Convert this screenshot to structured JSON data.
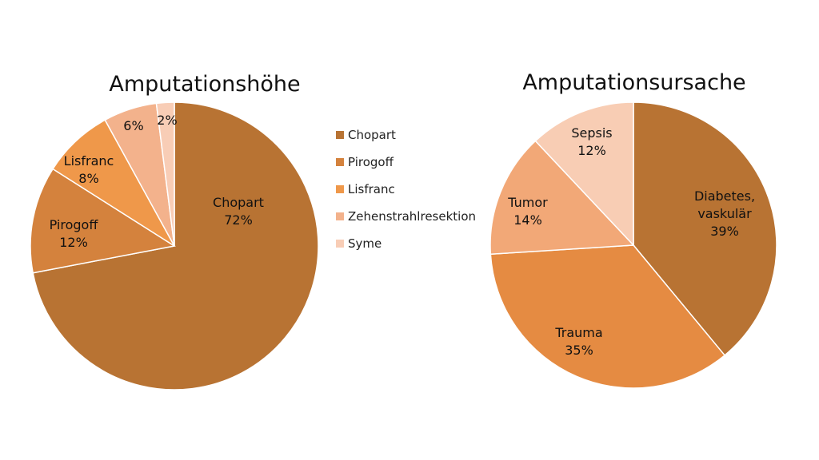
{
  "chart_data": [
    {
      "type": "pie",
      "title": "Amputationshöhe",
      "start": "top",
      "direction": "clockwise",
      "slices": [
        {
          "label": "Chopart",
          "value": 72,
          "display": "72%",
          "color": "#B87333"
        },
        {
          "label": "Pirogoff",
          "value": 12,
          "display": "12%",
          "color": "#D4823D"
        },
        {
          "label": "Lisfranc",
          "value": 8,
          "display": "8%",
          "color": "#EF984A"
        },
        {
          "label": "Zehenstrahlresektion",
          "value": 6,
          "display": "6%",
          "color": "#F3B28C"
        },
        {
          "label": "Syme",
          "value": 2,
          "display": "2%",
          "color": "#F8CDB6"
        }
      ],
      "legend": "right"
    },
    {
      "type": "pie",
      "title": "Amputationsursache",
      "start": "top",
      "direction": "clockwise",
      "slices": [
        {
          "label": "Diabetes, vaskulär",
          "value": 39,
          "display": "39%",
          "color": "#B87333"
        },
        {
          "label": "Trauma",
          "value": 35,
          "display": "35%",
          "color": "#E58B42"
        },
        {
          "label": "Tumor",
          "value": 14,
          "display": "14%",
          "color": "#F2A877"
        },
        {
          "label": "Sepsis",
          "value": 12,
          "display": "12%",
          "color": "#F8CDB4"
        }
      ],
      "legend": "none"
    }
  ]
}
